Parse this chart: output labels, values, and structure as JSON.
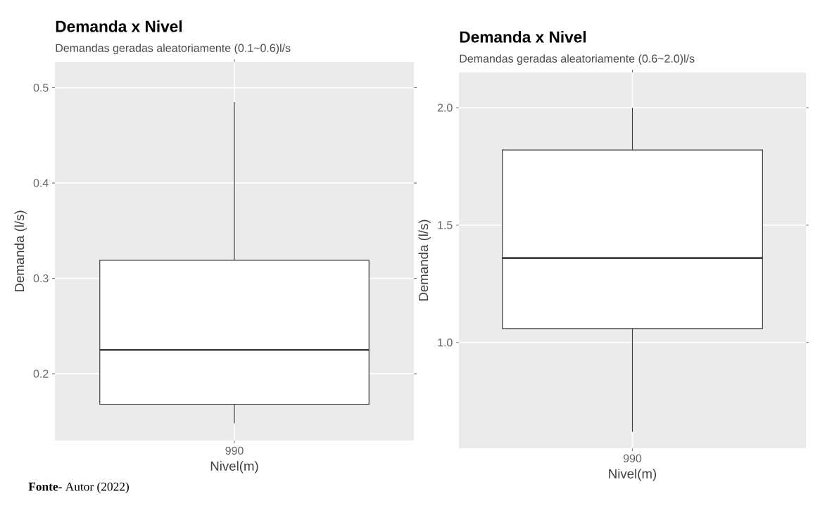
{
  "chart_data": [
    {
      "type": "box",
      "title": "Demanda x Nivel",
      "subtitle": "Demandas geradas aleatoriamente    (0.1~0.6)l/s",
      "xlabel": "Nivel(m)",
      "ylabel": "Demanda (l/s)",
      "categories": [
        "990"
      ],
      "boxes": [
        {
          "low": 0.148,
          "q1": 0.168,
          "median": 0.225,
          "q3": 0.319,
          "high": 0.485
        }
      ],
      "ylim": [
        0.13,
        0.527
      ],
      "yticks": [
        0.2,
        0.3,
        0.4,
        0.5
      ],
      "grid": true,
      "annotations": [
        "**Fonte**- Autor (2022)"
      ]
    },
    {
      "type": "box",
      "title": "Demanda x Nivel",
      "subtitle": "Demandas geradas aleatoriamente  (0.6~2.0)l/s",
      "xlabel": "Nivel(m)",
      "ylabel": "Demanda (l/s)",
      "categories": [
        "990"
      ],
      "boxes": [
        {
          "low": 0.62,
          "q1": 1.06,
          "median": 1.36,
          "q3": 1.82,
          "high": 2.0
        }
      ],
      "ylim": [
        0.55,
        2.15
      ],
      "yticks": [
        {
          "value": 1,
          "label": "1.0"
        },
        1.5,
        {
          "value": 2,
          "label": "2.0"
        }
      ],
      "grid": true
    }
  ]
}
